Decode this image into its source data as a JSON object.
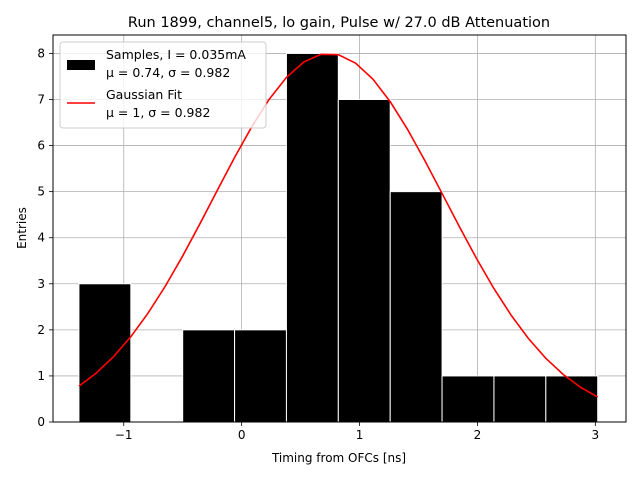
{
  "chart_data": {
    "type": "bar",
    "title": "Run 1899, channel5, lo gain, Pulse w/ 27.0 dB Attenuation",
    "xlabel": "Timing from OFCs [ns]",
    "ylabel": "Entries",
    "xlim": [
      -1.6,
      3.26
    ],
    "ylim": [
      0,
      8.4
    ],
    "grid": true,
    "legend_position": "upper-left",
    "x_ticks": [
      {
        "value": -1,
        "label": "−1"
      },
      {
        "value": 0,
        "label": "0"
      },
      {
        "value": 1,
        "label": "1"
      },
      {
        "value": 2,
        "label": "2"
      },
      {
        "value": 3,
        "label": "3"
      }
    ],
    "y_ticks": [
      {
        "value": 0,
        "label": "0"
      },
      {
        "value": 1,
        "label": "1"
      },
      {
        "value": 2,
        "label": "2"
      },
      {
        "value": 3,
        "label": "3"
      },
      {
        "value": 4,
        "label": "4"
      },
      {
        "value": 5,
        "label": "5"
      },
      {
        "value": 6,
        "label": "6"
      },
      {
        "value": 7,
        "label": "7"
      },
      {
        "value": 8,
        "label": "8"
      }
    ],
    "histogram": {
      "name": "Samples, I = 0.035mA",
      "stats": "μ = 0.74, σ = 0.982",
      "color": "#000000",
      "edge_color": "#ffffff",
      "bins": [
        {
          "x0": -1.38,
          "x1": -0.94,
          "count": 3
        },
        {
          "x0": -0.94,
          "x1": -0.5,
          "count": 0
        },
        {
          "x0": -0.5,
          "x1": -0.06,
          "count": 2
        },
        {
          "x0": -0.06,
          "x1": 0.38,
          "count": 2
        },
        {
          "x0": 0.38,
          "x1": 0.82,
          "count": 8
        },
        {
          "x0": 0.82,
          "x1": 1.26,
          "count": 7
        },
        {
          "x0": 1.26,
          "x1": 1.7,
          "count": 5
        },
        {
          "x0": 1.7,
          "x1": 2.14,
          "count": 1
        },
        {
          "x0": 2.14,
          "x1": 2.58,
          "count": 1
        },
        {
          "x0": 2.58,
          "x1": 3.02,
          "count": 1
        }
      ]
    },
    "fit": {
      "name": "Gaussian Fit",
      "stats": "μ = 1, σ = 0.982",
      "color": "#ff0000",
      "type": "gaussian",
      "amplitude": 8.0,
      "mean": 0.74,
      "sigma": 0.982,
      "x_range": [
        -1.38,
        3.02
      ]
    }
  }
}
